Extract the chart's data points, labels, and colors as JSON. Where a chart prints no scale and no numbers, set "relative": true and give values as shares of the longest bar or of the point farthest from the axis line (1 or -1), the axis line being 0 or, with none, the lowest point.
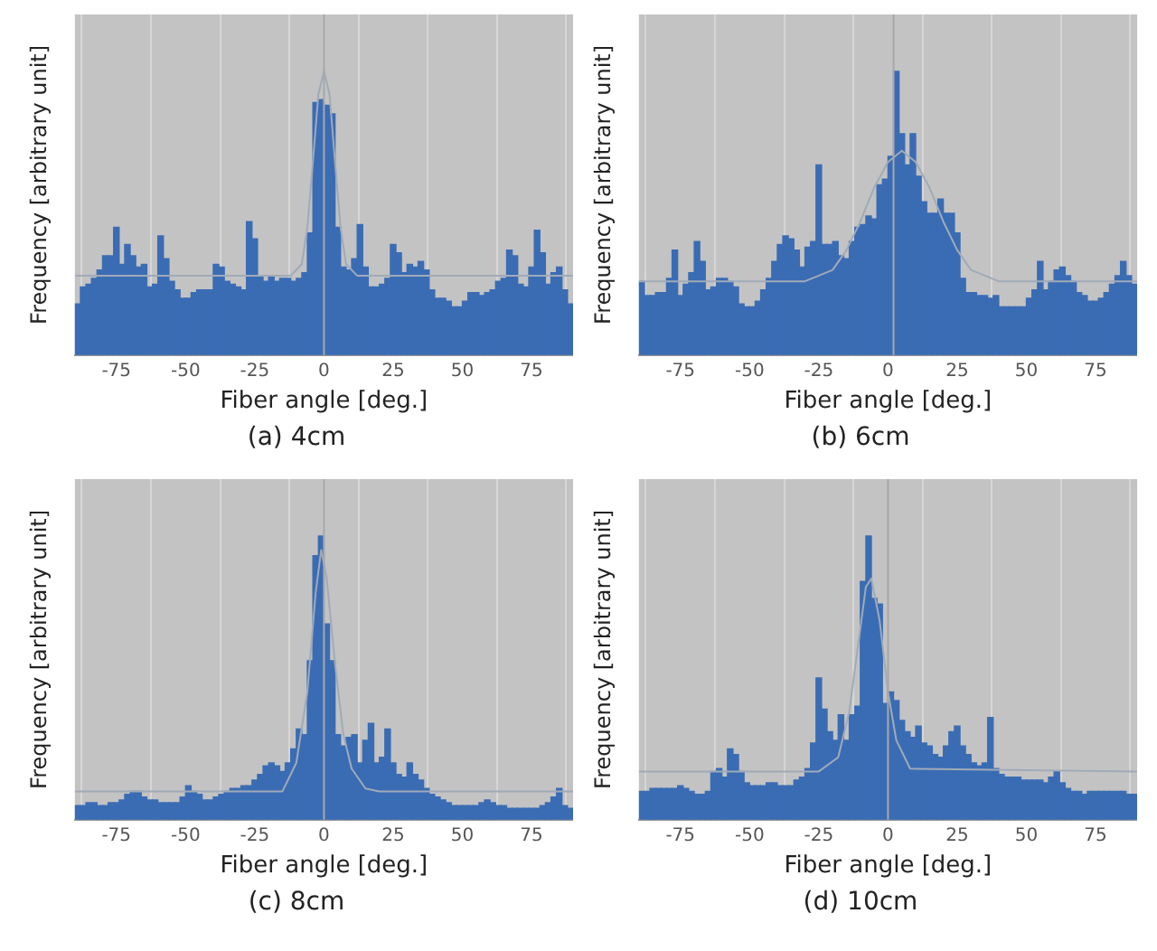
{
  "chart_data": [
    {
      "type": "histogram",
      "title": "(a) 4cm",
      "xlabel": "Fiber angle [deg.]",
      "ylabel": "Frequency [arbitrary unit]",
      "relative": true,
      "grid": "x",
      "xlim": [
        -90,
        90
      ],
      "xticks": [
        -75,
        -50,
        -25,
        0,
        25,
        50,
        75
      ],
      "bins": [
        -90,
        -88,
        -86,
        -84,
        -82,
        -80,
        -78,
        -76,
        -74,
        -72,
        -70,
        -68,
        -66,
        -64,
        -62,
        -60,
        -58,
        -56,
        -54,
        -52,
        -50,
        -48,
        -46,
        -44,
        -42,
        -40,
        -38,
        -36,
        -34,
        -32,
        -30,
        -28,
        -26,
        -24,
        -22,
        -20,
        -18,
        -16,
        -14,
        -12,
        -10,
        -8,
        -6,
        -4,
        -2,
        0,
        2,
        4,
        6,
        8,
        10,
        12,
        14,
        16,
        18,
        20,
        22,
        24,
        26,
        28,
        30,
        32,
        34,
        36,
        38,
        40,
        42,
        44,
        46,
        48,
        50,
        52,
        54,
        56,
        58,
        60,
        62,
        64,
        66,
        68,
        70,
        72,
        74,
        76,
        78,
        80,
        82,
        84,
        86,
        88,
        90
      ],
      "ref_lines": [
        {
          "axis": "x",
          "value": 0,
          "color": "#a8a8a8"
        }
      ],
      "series": [
        {
          "type": "histogram",
          "color": "#3a6cb4",
          "values": [
            0.18,
            0.24,
            0.25,
            0.27,
            0.3,
            0.35,
            0.35,
            0.45,
            0.32,
            0.39,
            0.35,
            0.31,
            0.32,
            0.24,
            0.25,
            0.42,
            0.34,
            0.26,
            0.23,
            0.2,
            0.2,
            0.22,
            0.23,
            0.23,
            0.23,
            0.32,
            0.31,
            0.26,
            0.25,
            0.24,
            0.23,
            0.47,
            0.41,
            0.28,
            0.26,
            0.28,
            0.26,
            0.27,
            0.27,
            0.26,
            0.27,
            0.29,
            0.43,
            0.89,
            0.9,
            0.88,
            0.85,
            0.45,
            0.31,
            0.3,
            0.34,
            0.46,
            0.31,
            0.24,
            0.24,
            0.25,
            0.27,
            0.39,
            0.36,
            0.29,
            0.32,
            0.31,
            0.33,
            0.3,
            0.23,
            0.2,
            0.2,
            0.19,
            0.17,
            0.17,
            0.19,
            0.22,
            0.22,
            0.21,
            0.22,
            0.23,
            0.26,
            0.27,
            0.37,
            0.35,
            0.25,
            0.24,
            0.31,
            0.44,
            0.36,
            0.25,
            0.29,
            0.31,
            0.23,
            0.18
          ]
        },
        {
          "type": "line",
          "color": "#a0aab8",
          "x": [
            -90,
            -12,
            -8,
            -6,
            -4,
            -2,
            0,
            2,
            4,
            6,
            8,
            12,
            90
          ],
          "values": [
            0.28,
            0.28,
            0.32,
            0.45,
            0.68,
            0.92,
            1.0,
            0.92,
            0.68,
            0.45,
            0.32,
            0.28,
            0.28
          ]
        }
      ]
    },
    {
      "type": "histogram",
      "title": "(b) 6cm",
      "xlabel": "Fiber angle [deg.]",
      "ylabel": "Frequency [arbitrary unit]",
      "relative": true,
      "grid": "x",
      "xlim": [
        -90,
        90
      ],
      "xticks": [
        -75,
        -50,
        -25,
        0,
        25,
        50,
        75
      ],
      "bins": [
        -90,
        -88,
        -86,
        -84,
        -82,
        -80,
        -78,
        -76,
        -74,
        -72,
        -70,
        -68,
        -66,
        -64,
        -62,
        -60,
        -58,
        -56,
        -54,
        -52,
        -50,
        -48,
        -46,
        -44,
        -42,
        -40,
        -38,
        -36,
        -34,
        -32,
        -30,
        -28,
        -26,
        -24,
        -22,
        -20,
        -18,
        -16,
        -14,
        -12,
        -10,
        -8,
        -6,
        -4,
        -2,
        0,
        2,
        4,
        6,
        8,
        10,
        12,
        14,
        16,
        18,
        20,
        22,
        24,
        26,
        28,
        30,
        32,
        34,
        36,
        38,
        40,
        42,
        44,
        46,
        48,
        50,
        52,
        54,
        56,
        58,
        60,
        62,
        64,
        66,
        68,
        70,
        72,
        74,
        76,
        78,
        80,
        82,
        84,
        86,
        88,
        90
      ],
      "ref_lines": [
        {
          "axis": "x",
          "value": 2,
          "color": "#a8a8a8"
        }
      ],
      "series": [
        {
          "type": "histogram",
          "color": "#3a6cb4",
          "values": [
            0.26,
            0.21,
            0.21,
            0.22,
            0.22,
            0.27,
            0.37,
            0.21,
            0.25,
            0.29,
            0.4,
            0.33,
            0.23,
            0.24,
            0.27,
            0.27,
            0.26,
            0.24,
            0.18,
            0.17,
            0.17,
            0.19,
            0.23,
            0.27,
            0.33,
            0.39,
            0.42,
            0.41,
            0.37,
            0.31,
            0.38,
            0.4,
            0.67,
            0.39,
            0.39,
            0.4,
            0.35,
            0.34,
            0.4,
            0.45,
            0.46,
            0.49,
            0.48,
            0.6,
            0.62,
            0.7,
            1.0,
            0.78,
            0.67,
            0.78,
            0.63,
            0.54,
            0.5,
            0.5,
            0.55,
            0.5,
            0.5,
            0.43,
            0.27,
            0.22,
            0.22,
            0.21,
            0.21,
            0.2,
            0.21,
            0.17,
            0.17,
            0.17,
            0.17,
            0.17,
            0.2,
            0.23,
            0.33,
            0.23,
            0.26,
            0.3,
            0.31,
            0.28,
            0.26,
            0.22,
            0.21,
            0.19,
            0.19,
            0.2,
            0.22,
            0.25,
            0.28,
            0.33,
            0.28,
            0.25
          ]
        },
        {
          "type": "line",
          "color": "#a0aab8",
          "x": [
            -90,
            -30,
            -20,
            -15,
            -10,
            -5,
            0,
            5,
            10,
            15,
            20,
            25,
            30,
            40,
            90
          ],
          "values": [
            0.26,
            0.26,
            0.3,
            0.37,
            0.47,
            0.59,
            0.68,
            0.72,
            0.68,
            0.59,
            0.47,
            0.37,
            0.3,
            0.26,
            0.26
          ]
        }
      ]
    },
    {
      "type": "histogram",
      "title": "(c) 8cm",
      "xlabel": "Fiber angle [deg.]",
      "ylabel": "Frequency [arbitrary unit]",
      "relative": true,
      "grid": "x",
      "xlim": [
        -90,
        90
      ],
      "xticks": [
        -75,
        -50,
        -25,
        0,
        25,
        50,
        75
      ],
      "bins": [
        -90,
        -88,
        -86,
        -84,
        -82,
        -80,
        -78,
        -76,
        -74,
        -72,
        -70,
        -68,
        -66,
        -64,
        -62,
        -60,
        -58,
        -56,
        -54,
        -52,
        -50,
        -48,
        -46,
        -44,
        -42,
        -40,
        -38,
        -36,
        -34,
        -32,
        -30,
        -28,
        -26,
        -24,
        -22,
        -20,
        -18,
        -16,
        -14,
        -12,
        -10,
        -8,
        -6,
        -4,
        -2,
        0,
        2,
        4,
        6,
        8,
        10,
        12,
        14,
        16,
        18,
        20,
        22,
        24,
        26,
        28,
        30,
        32,
        34,
        36,
        38,
        40,
        42,
        44,
        46,
        48,
        50,
        52,
        54,
        56,
        58,
        60,
        62,
        64,
        66,
        68,
        70,
        72,
        74,
        76,
        78,
        80,
        82,
        84,
        86,
        88,
        90
      ],
      "ref_lines": [
        {
          "axis": "x",
          "value": 0,
          "color": "#a8a8a8"
        }
      ],
      "series": [
        {
          "type": "histogram",
          "color": "#3a6cb4",
          "values": [
            0.05,
            0.05,
            0.06,
            0.06,
            0.05,
            0.05,
            0.06,
            0.06,
            0.07,
            0.09,
            0.1,
            0.1,
            0.08,
            0.07,
            0.07,
            0.06,
            0.06,
            0.06,
            0.06,
            0.08,
            0.12,
            0.1,
            0.09,
            0.07,
            0.07,
            0.08,
            0.09,
            0.1,
            0.11,
            0.11,
            0.12,
            0.12,
            0.14,
            0.16,
            0.19,
            0.2,
            0.19,
            0.17,
            0.2,
            0.25,
            0.32,
            0.3,
            0.56,
            0.93,
            1.0,
            0.69,
            0.56,
            0.3,
            0.26,
            0.29,
            0.3,
            0.2,
            0.28,
            0.34,
            0.2,
            0.22,
            0.32,
            0.2,
            0.16,
            0.15,
            0.2,
            0.16,
            0.14,
            0.11,
            0.09,
            0.08,
            0.07,
            0.06,
            0.05,
            0.05,
            0.05,
            0.05,
            0.05,
            0.06,
            0.07,
            0.06,
            0.05,
            0.05,
            0.04,
            0.04,
            0.04,
            0.04,
            0.04,
            0.04,
            0.05,
            0.06,
            0.08,
            0.11,
            0.05,
            0.04
          ]
        },
        {
          "type": "line",
          "color": "#a0aab8",
          "x": [
            -90,
            -15,
            -10,
            -6,
            -3,
            -1,
            1,
            4,
            7,
            10,
            15,
            20,
            90
          ],
          "values": [
            0.1,
            0.1,
            0.2,
            0.45,
            0.8,
            0.95,
            0.85,
            0.55,
            0.3,
            0.18,
            0.11,
            0.1,
            0.1
          ]
        }
      ]
    },
    {
      "type": "histogram",
      "title": "(d) 10cm",
      "xlabel": "Fiber angle [deg.]",
      "ylabel": "Frequency [arbitrary unit]",
      "relative": true,
      "grid": "x",
      "xlim": [
        -90,
        90
      ],
      "xticks": [
        -75,
        -50,
        -25,
        0,
        25,
        50,
        75
      ],
      "bins": [
        -90,
        -88,
        -86,
        -84,
        -82,
        -80,
        -78,
        -76,
        -74,
        -72,
        -70,
        -68,
        -66,
        -64,
        -62,
        -60,
        -58,
        -56,
        -54,
        -52,
        -50,
        -48,
        -46,
        -44,
        -42,
        -40,
        -38,
        -36,
        -34,
        -32,
        -30,
        -28,
        -26,
        -24,
        -22,
        -20,
        -18,
        -16,
        -14,
        -12,
        -10,
        -8,
        -6,
        -4,
        -2,
        0,
        2,
        4,
        6,
        8,
        10,
        12,
        14,
        16,
        18,
        20,
        22,
        24,
        26,
        28,
        30,
        32,
        34,
        36,
        38,
        40,
        42,
        44,
        46,
        48,
        50,
        52,
        54,
        56,
        58,
        60,
        62,
        64,
        66,
        68,
        70,
        72,
        74,
        76,
        78,
        80,
        82,
        84,
        86,
        88,
        90
      ],
      "ref_lines": [
        {
          "axis": "x",
          "value": 0,
          "color": "#a8a8a8"
        }
      ],
      "series": [
        {
          "type": "histogram",
          "color": "#3a6cb4",
          "values": [
            0.1,
            0.1,
            0.11,
            0.11,
            0.11,
            0.11,
            0.11,
            0.12,
            0.11,
            0.1,
            0.09,
            0.09,
            0.1,
            0.17,
            0.18,
            0.15,
            0.25,
            0.23,
            0.17,
            0.13,
            0.12,
            0.12,
            0.12,
            0.13,
            0.13,
            0.12,
            0.12,
            0.12,
            0.14,
            0.15,
            0.18,
            0.27,
            0.5,
            0.39,
            0.31,
            0.28,
            0.37,
            0.28,
            0.37,
            0.4,
            0.84,
            1.0,
            0.78,
            0.76,
            0.41,
            0.45,
            0.42,
            0.35,
            0.31,
            0.29,
            0.33,
            0.27,
            0.26,
            0.23,
            0.22,
            0.26,
            0.31,
            0.33,
            0.26,
            0.23,
            0.2,
            0.19,
            0.2,
            0.36,
            0.18,
            0.16,
            0.15,
            0.15,
            0.15,
            0.14,
            0.14,
            0.14,
            0.14,
            0.13,
            0.15,
            0.17,
            0.13,
            0.11,
            0.1,
            0.1,
            0.09,
            0.1,
            0.1,
            0.1,
            0.1,
            0.1,
            0.1,
            0.1,
            0.09,
            0.09
          ]
        },
        {
          "type": "line",
          "color": "#a0aab8",
          "x": [
            -90,
            -25,
            -18,
            -14,
            -11,
            -8,
            -6,
            -3,
            0,
            3,
            8,
            90
          ],
          "values": [
            0.17,
            0.17,
            0.22,
            0.38,
            0.6,
            0.82,
            0.85,
            0.7,
            0.45,
            0.28,
            0.18,
            0.17
          ]
        }
      ]
    }
  ]
}
